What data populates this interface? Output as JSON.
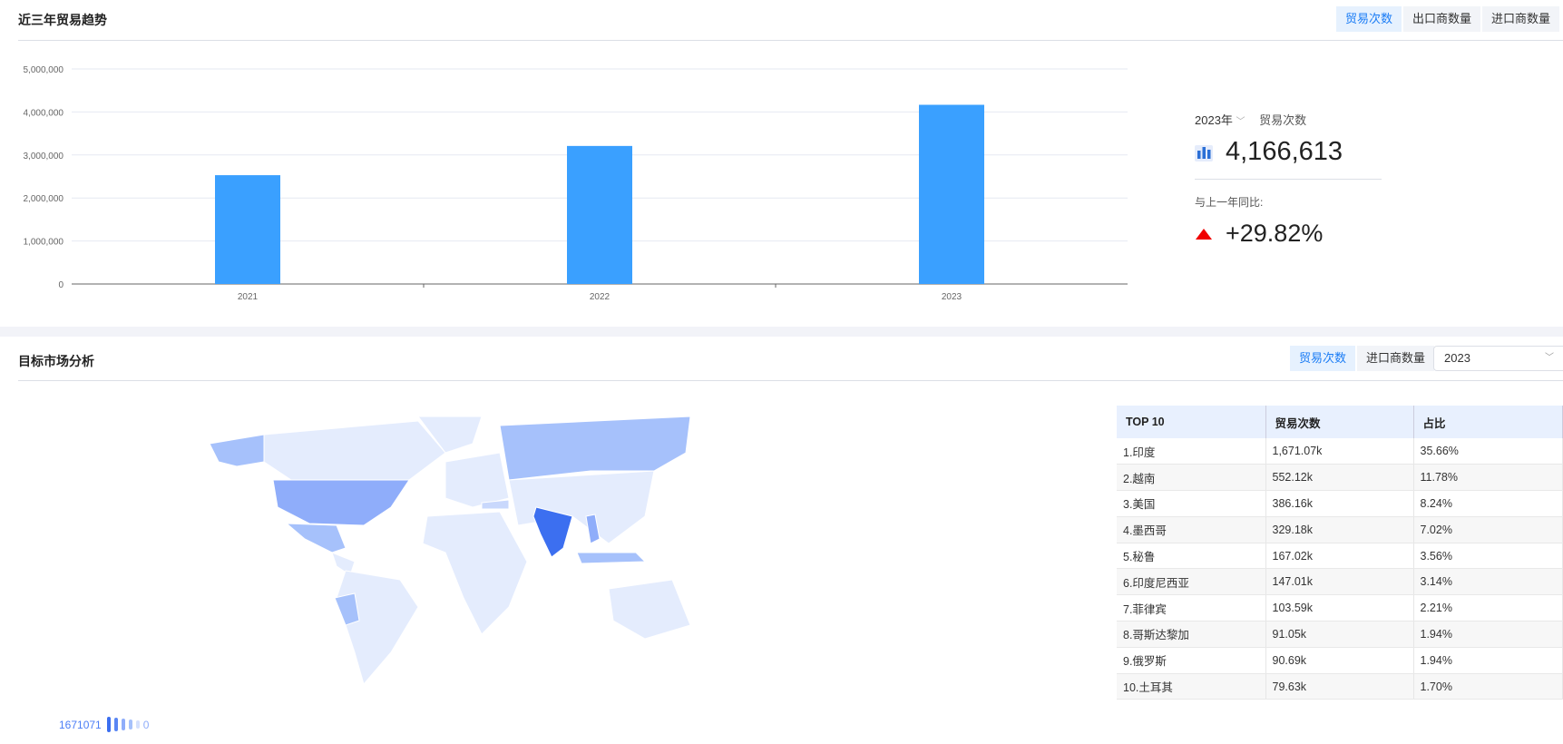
{
  "trend": {
    "title": "近三年贸易趋势",
    "tabs": [
      "贸易次数",
      "出口商数量",
      "进口商数量"
    ],
    "active_tab": 0
  },
  "chart_data": {
    "type": "bar",
    "categories": [
      "2021",
      "2022",
      "2023"
    ],
    "values": [
      2530000,
      3209530,
      4166613
    ],
    "ylim": [
      0,
      5000000
    ],
    "yticks": [
      "0",
      "1,000,000",
      "2,000,000",
      "3,000,000",
      "4,000,000",
      "5,000,000"
    ],
    "grid": true,
    "color": "#3aa0ff"
  },
  "stats": {
    "year": "2023年",
    "metric": "贸易次数",
    "value": "4,166,613",
    "yoy_label": "与上一年同比:",
    "yoy": "+29.82%",
    "up_color": "#f00000"
  },
  "market": {
    "title": "目标市场分析",
    "tabs": [
      "贸易次数",
      "进口商数量"
    ],
    "active_tab": 0,
    "year_select": "2023",
    "legend": {
      "max": "1671071",
      "min": "0"
    },
    "table": {
      "headers": [
        "TOP 10",
        "贸易次数",
        "占比"
      ],
      "rows": [
        [
          "1.印度",
          "1,671.07k",
          "35.66%"
        ],
        [
          "2.越南",
          "552.12k",
          "11.78%"
        ],
        [
          "3.美国",
          "386.16k",
          "8.24%"
        ],
        [
          "4.墨西哥",
          "329.18k",
          "7.02%"
        ],
        [
          "5.秘鲁",
          "167.02k",
          "3.56%"
        ],
        [
          "6.印度尼西亚",
          "147.01k",
          "3.14%"
        ],
        [
          "7.菲律宾",
          "103.59k",
          "2.21%"
        ],
        [
          "8.哥斯达黎加",
          "91.05k",
          "1.94%"
        ],
        [
          "9.俄罗斯",
          "90.69k",
          "1.94%"
        ],
        [
          "10.土耳其",
          "79.63k",
          "1.70%"
        ]
      ]
    }
  }
}
